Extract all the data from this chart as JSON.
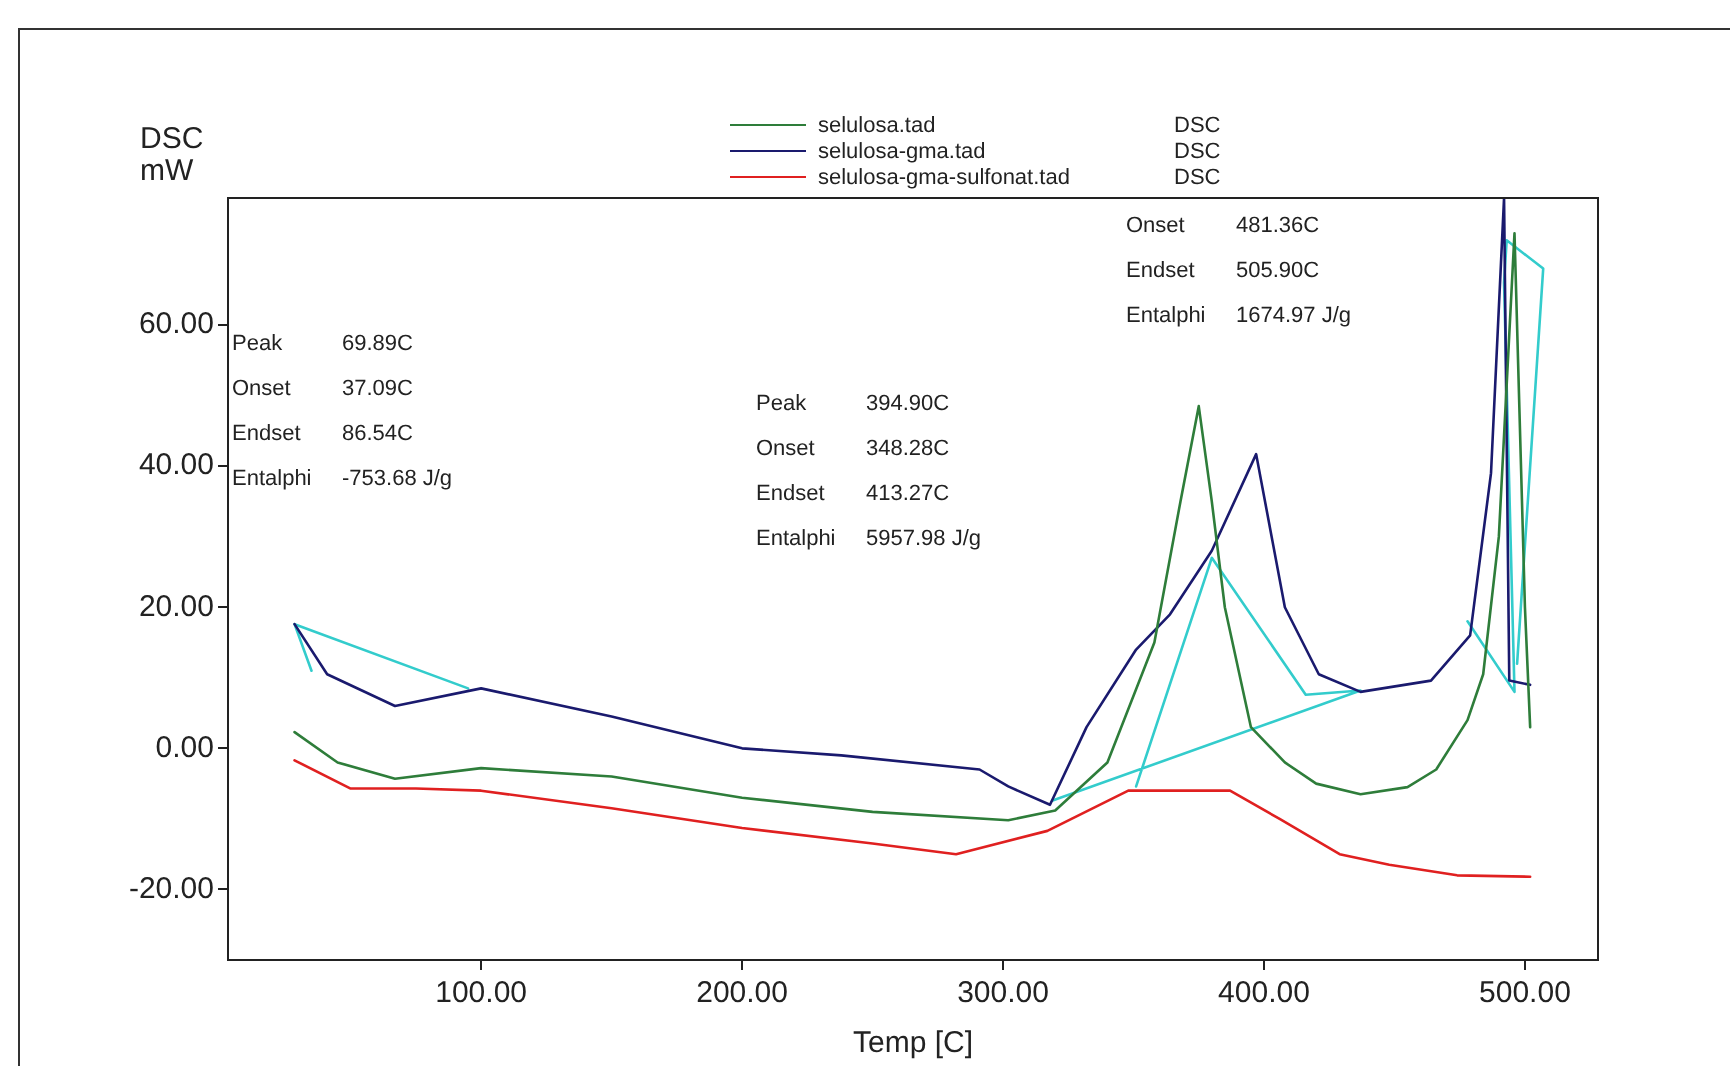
{
  "chart_data": {
    "type": "line",
    "xlabel": "Temp [C]",
    "ylabel": "DSC\nmW",
    "xlim": [
      3,
      528
    ],
    "ylim": [
      -30,
      78
    ],
    "xticks": [
      {
        "value": 100,
        "label": "100.00"
      },
      {
        "value": 200,
        "label": "200.00"
      },
      {
        "value": 300,
        "label": "300.00"
      },
      {
        "value": 400,
        "label": "400.00"
      },
      {
        "value": 500,
        "label": "500.00"
      }
    ],
    "yticks": [
      {
        "value": -20,
        "label": "-20.00"
      },
      {
        "value": 0,
        "label": "0.00"
      },
      {
        "value": 20,
        "label": "20.00"
      },
      {
        "value": 40,
        "label": "40.00"
      },
      {
        "value": 60,
        "label": "60.00"
      }
    ],
    "grid": false,
    "legend": "top",
    "marker": "none",
    "line_style": "solid",
    "series": [
      {
        "name": "selulosa.tad",
        "color": "#2e7d3a",
        "x": [
          28.5,
          45,
          67,
          100,
          150,
          200,
          250,
          302,
          320,
          340,
          358,
          368,
          375,
          380,
          385,
          395,
          408,
          420,
          437,
          455,
          466,
          478,
          484,
          490,
          496,
          500,
          502
        ],
        "values": [
          2.3,
          -2,
          -4.3,
          -2.8,
          -4,
          -7,
          -9,
          -10.2,
          -8.8,
          -2,
          15,
          35,
          48.5,
          35,
          20,
          3,
          -2,
          -5,
          -6.5,
          -5.5,
          -3,
          4,
          10.5,
          30,
          73,
          20,
          3
        ]
      },
      {
        "name": "selulosa-gma.tad",
        "color": "#1a1a6e",
        "x": [
          28.5,
          41,
          67,
          100,
          150,
          200,
          238,
          291,
          302,
          318,
          332,
          351,
          364,
          380,
          397,
          408,
          421,
          437,
          464,
          479,
          487,
          492,
          494,
          502
        ],
        "values": [
          17.6,
          10.5,
          6,
          8.5,
          4.5,
          0,
          -1,
          -3,
          -5.4,
          -8,
          3,
          14,
          19,
          28,
          41.7,
          20,
          10.5,
          8,
          9.6,
          16,
          39,
          78,
          9.6,
          9
        ]
      },
      {
        "name": "selulosa-gma-sulfonat.tad",
        "color": "#e02020",
        "x": [
          28.5,
          50,
          75,
          100,
          150,
          200,
          250,
          282,
          317,
          348,
          387,
          406,
          429,
          448,
          474,
          502
        ],
        "values": [
          -1.7,
          -5.7,
          -5.7,
          -6,
          -8.5,
          -11.3,
          -13.5,
          -15,
          -11.7,
          -6,
          -6,
          -10,
          -15,
          -16.5,
          -18,
          -18.2
        ]
      },
      {
        "color": "#33cccc",
        "x": [
          35,
          28.5,
          95,
          null,
          319,
          437,
          416,
          380,
          351,
          null,
          478,
          496,
          492,
          493,
          507,
          497
        ],
        "values": [
          11,
          17.6,
          8.5,
          null,
          -7.4,
          8.2,
          7.6,
          27,
          -5.4,
          null,
          18,
          8,
          66,
          72,
          68,
          12
        ]
      }
    ],
    "annotations": [
      "Peak 69.89C",
      "Onset 37.09C",
      "Endset 86.54C",
      "Entalphi -753.68 J/g",
      "Peak 394.90C",
      "Onset 348.28C",
      "Endset 413.27C",
      "Entalphi 5957.98 J/g",
      "Onset 481.36C",
      "Endset 505.90C",
      "Entalphi 1674.97 J/g",
      "DSC",
      "DSC",
      "DSC"
    ]
  }
}
